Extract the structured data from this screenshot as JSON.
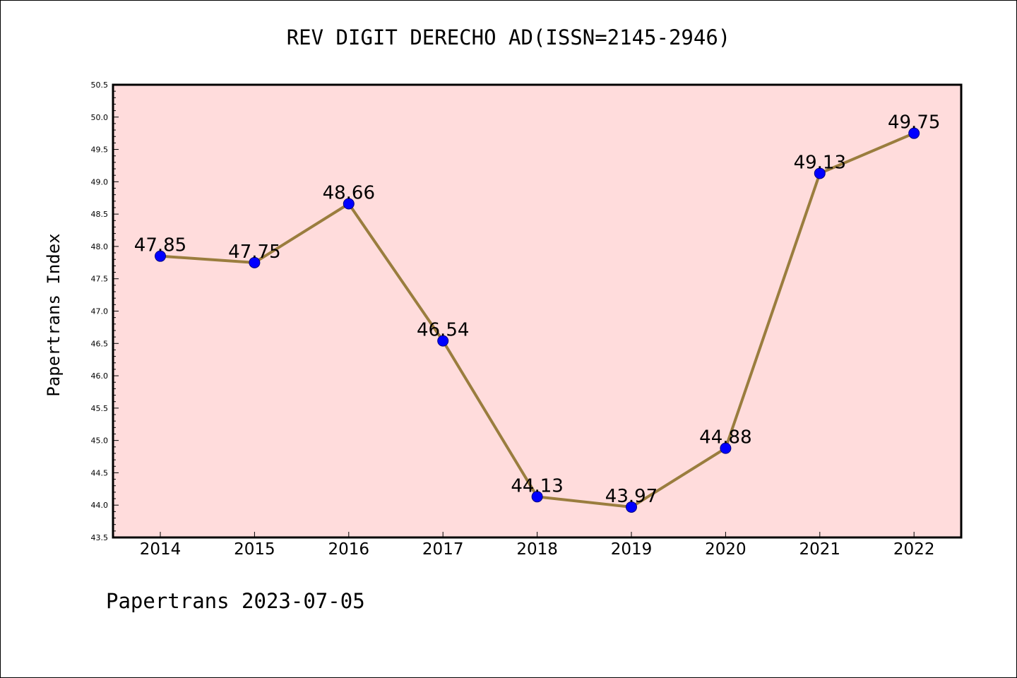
{
  "chart_data": {
    "type": "line",
    "title": "REV DIGIT DERECHO AD(ISSN=2145-2946)",
    "ylabel": "Papertrans Index",
    "xlabel": "",
    "footer": "Papertrans 2023-07-05",
    "categories": [
      "2014",
      "2015",
      "2016",
      "2017",
      "2018",
      "2019",
      "2020",
      "2021",
      "2022"
    ],
    "series": [
      {
        "values": [
          47.85,
          47.75,
          48.66,
          46.54,
          44.13,
          43.97,
          44.88,
          49.13,
          49.75
        ],
        "data_labels": [
          "47.85",
          "47.75",
          "48.66",
          "46.54",
          "44.13",
          "43.97",
          "44.88",
          "49.13",
          "49.75"
        ],
        "line_color": "#9a7d3e",
        "marker_color": "#0000ff"
      }
    ],
    "ylim": [
      43.5,
      50.5
    ],
    "ytick_step": 0.5,
    "yticks": [
      "43.5",
      "44.0",
      "44.5",
      "45.0",
      "45.5",
      "46.0",
      "46.5",
      "47.0",
      "47.5",
      "48.0",
      "48.5",
      "49.0",
      "49.5",
      "50.0",
      "50.5"
    ],
    "plot_background": "#ffdcdc",
    "grid": false,
    "legend": "none"
  }
}
